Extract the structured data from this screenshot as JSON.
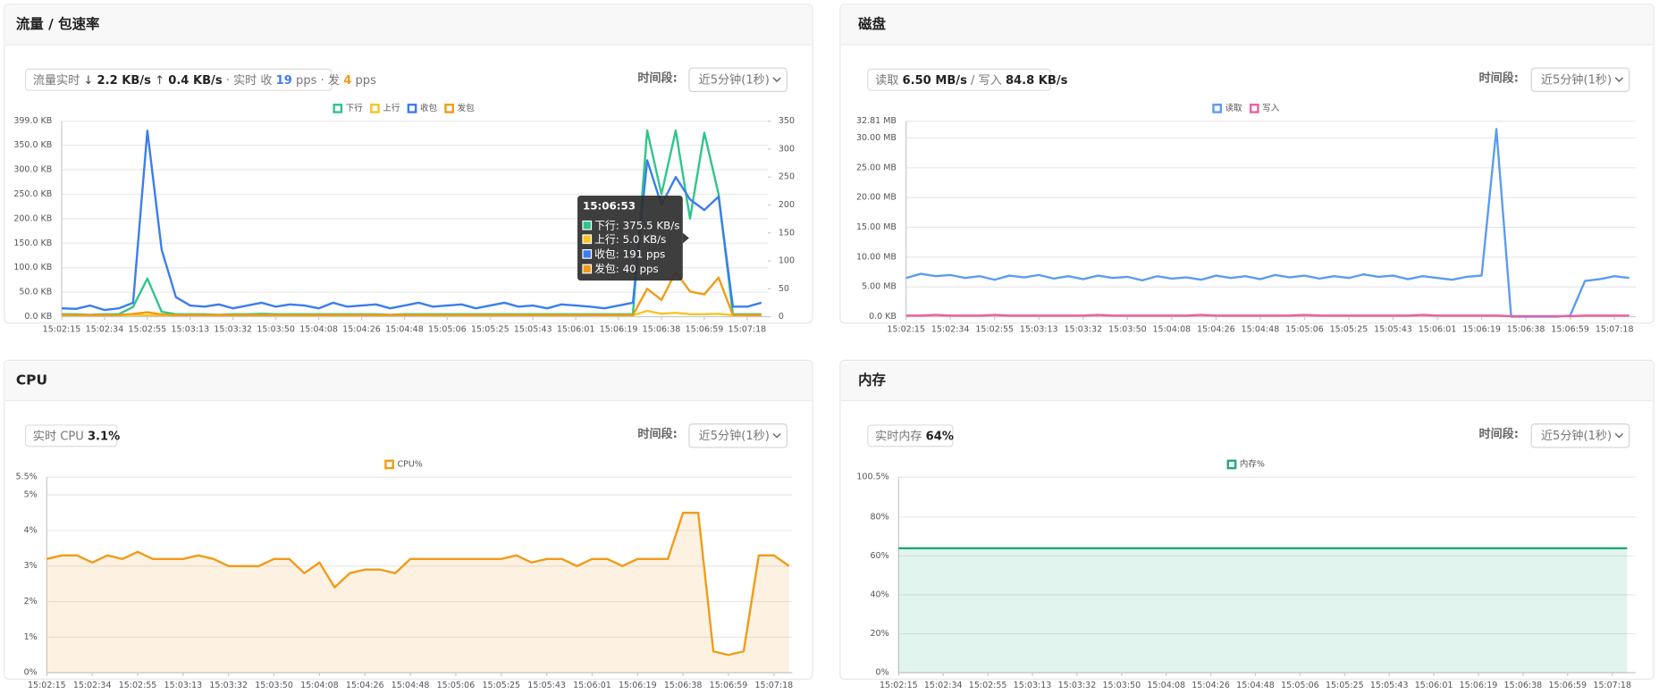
{
  "panels": [
    {
      "badge": [
        "流量实时",
        "↓",
        "2.2 KB/s",
        "↑",
        "0.4 KB/s",
        "· 实时 收",
        "19",
        "pps · 发",
        "4",
        "pps"
      ],
      "time_label": "时间段:",
      "time_select": "近5分钟(1秒)",
      "tooltip": {
        "title": "15:06:53",
        "items": [
          "下行: 375.5 KB/s",
          "上行: 5.0 KB/s",
          "收包: 191 pps",
          "发包: 40 pps"
        ]
      }
    },
    {
      "badge": [
        "读取",
        "6.50 MB/s",
        "/ 写入",
        "84.8 KB/s"
      ],
      "time_label": "时间段:",
      "time_select": "近5分钟(1秒)"
    },
    {
      "badge": [
        "实时 CPU",
        "3.1%"
      ],
      "time_label": "时间段:",
      "time_select": "近5分钟(1秒)"
    },
    {
      "badge": [
        "实时内存",
        "64%"
      ],
      "time_label": "时间段:",
      "time_select": "近5分钟(1秒)"
    }
  ],
  "chart_data": [
    {
      "type": "line",
      "title": "流量 / 包速率",
      "categories": [
        "15:02:15",
        null,
        null,
        "15:02:34",
        null,
        null,
        "15:02:55",
        null,
        null,
        "15:03:13",
        null,
        null,
        "15:03:32",
        null,
        null,
        "15:03:50",
        null,
        null,
        "15:04:08",
        null,
        null,
        "15:04:26",
        null,
        null,
        "15:04:48",
        null,
        null,
        "15:05:06",
        null,
        null,
        "15:05:25",
        null,
        null,
        "15:05:43",
        null,
        null,
        "15:06:01",
        null,
        null,
        "15:06:19",
        null,
        null,
        "15:06:38",
        null,
        null,
        "15:06:59",
        null,
        null,
        "15:07:18",
        null
      ],
      "series": [
        {
          "name": "下行",
          "color": "#2fc58a",
          "values": [
            5,
            5,
            4,
            5,
            5,
            20,
            78,
            10,
            5,
            5,
            5,
            4,
            5,
            5,
            6,
            5,
            5,
            5,
            5,
            5,
            5,
            5,
            5,
            4,
            5,
            5,
            5,
            5,
            5,
            5,
            5,
            5,
            5,
            5,
            5,
            5,
            5,
            5,
            5,
            5,
            5,
            380,
            250,
            380,
            200,
            375.5,
            250,
            5,
            5,
            5
          ]
        },
        {
          "name": "上行",
          "color": "#f7c623",
          "values": [
            3,
            3,
            3,
            3,
            3,
            4,
            3,
            3,
            3,
            3,
            3,
            3,
            3,
            3,
            3,
            3,
            3,
            3,
            3,
            3,
            3,
            3,
            3,
            3,
            3,
            3,
            3,
            3,
            3,
            3,
            3,
            3,
            3,
            3,
            3,
            3,
            3,
            3,
            3,
            3,
            3,
            12,
            6,
            8,
            5,
            5,
            6,
            3,
            3,
            3
          ]
        },
        {
          "name": "收包",
          "color": "#3b7ded",
          "axis": "y2",
          "values": [
            15,
            14,
            20,
            12,
            15,
            25,
            333,
            120,
            35,
            20,
            18,
            22,
            15,
            20,
            25,
            18,
            22,
            20,
            15,
            25,
            18,
            20,
            22,
            15,
            20,
            25,
            18,
            20,
            22,
            15,
            20,
            25,
            18,
            20,
            15,
            22,
            20,
            18,
            15,
            20,
            25,
            280,
            200,
            250,
            210,
            191,
            215,
            18,
            18,
            25
          ]
        },
        {
          "name": "发包",
          "color": "#f29b17",
          "axis": "y2",
          "values": [
            3,
            3,
            3,
            3,
            3,
            5,
            8,
            4,
            3,
            3,
            3,
            3,
            3,
            3,
            3,
            3,
            3,
            3,
            3,
            3,
            3,
            3,
            3,
            3,
            3,
            3,
            3,
            3,
            3,
            3,
            3,
            3,
            3,
            3,
            3,
            3,
            3,
            3,
            3,
            3,
            3,
            50,
            30,
            80,
            45,
            40,
            70,
            3,
            3,
            3
          ]
        }
      ],
      "ylim": [
        0,
        399
      ],
      "yticks": [
        {
          "value": 0,
          "label": "0.0 KB"
        },
        {
          "value": 50,
          "label": "50.0 KB"
        },
        {
          "value": 100,
          "label": "100.0 KB"
        },
        {
          "value": 150,
          "label": "150.0 KB"
        },
        {
          "value": 200,
          "label": "200.0 KB"
        },
        {
          "value": 250,
          "label": "250.0 KB"
        },
        {
          "value": 300,
          "label": "300.0 KB"
        },
        {
          "value": 350,
          "label": "350.0 KB"
        },
        {
          "value": 399,
          "label": "399.0 KB"
        }
      ],
      "y2lim": [
        0,
        350
      ],
      "y2ticks": [
        0,
        50,
        100,
        150,
        200,
        250,
        300,
        350
      ],
      "grid": true,
      "legend": "top"
    },
    {
      "type": "line",
      "title": "磁盘",
      "categories": [
        "15:02:15",
        null,
        null,
        "15:02:34",
        null,
        null,
        "15:02:55",
        null,
        null,
        "15:03:13",
        null,
        null,
        "15:03:32",
        null,
        null,
        "15:03:50",
        null,
        null,
        "15:04:08",
        null,
        null,
        "15:04:26",
        null,
        null,
        "15:04:48",
        null,
        null,
        "15:05:06",
        null,
        null,
        "15:05:25",
        null,
        null,
        "15:05:43",
        null,
        null,
        "15:06:01",
        null,
        null,
        "15:06:19",
        null,
        null,
        "15:06:38",
        null,
        null,
        "15:06:59",
        null,
        null,
        "15:07:18",
        null
      ],
      "series": [
        {
          "name": "读取",
          "color": "#5b9cf0",
          "values": [
            6.5,
            7.2,
            6.8,
            7.0,
            6.5,
            6.8,
            6.2,
            6.9,
            6.6,
            7.0,
            6.4,
            6.8,
            6.3,
            6.9,
            6.5,
            6.7,
            6.1,
            6.8,
            6.4,
            6.6,
            6.2,
            6.9,
            6.5,
            6.8,
            6.3,
            7.0,
            6.6,
            6.9,
            6.4,
            6.8,
            6.5,
            7.1,
            6.7,
            6.9,
            6.3,
            6.8,
            6.5,
            6.2,
            6.7,
            6.9,
            31.5,
            0,
            0,
            0,
            0,
            0.2,
            6.0,
            6.3,
            6.8,
            6.5
          ]
        },
        {
          "name": "写入",
          "color": "#ec5f9e",
          "values": [
            0.2,
            0.2,
            0.3,
            0.2,
            0.2,
            0.2,
            0.3,
            0.2,
            0.2,
            0.2,
            0.2,
            0.2,
            0.2,
            0.3,
            0.2,
            0.2,
            0.2,
            0.2,
            0.2,
            0.2,
            0.3,
            0.2,
            0.2,
            0.2,
            0.2,
            0.2,
            0.2,
            0.3,
            0.2,
            0.2,
            0.2,
            0.2,
            0.2,
            0.2,
            0.2,
            0.3,
            0.2,
            0.2,
            0.2,
            0.2,
            0.2,
            0.1,
            0.1,
            0.1,
            0.1,
            0.1,
            0.2,
            0.2,
            0.2,
            0.2
          ]
        }
      ],
      "ylim": [
        0,
        32.81
      ],
      "yticks": [
        {
          "value": 0,
          "label": "0.0 KB"
        },
        {
          "value": 5,
          "label": "5.00 MB"
        },
        {
          "value": 10,
          "label": "10.00 MB"
        },
        {
          "value": 15,
          "label": "15.00 MB"
        },
        {
          "value": 20,
          "label": "20.00 MB"
        },
        {
          "value": 25,
          "label": "25.00 MB"
        },
        {
          "value": 30,
          "label": "30.00 MB"
        },
        {
          "value": 32.81,
          "label": "32.81 MB"
        }
      ],
      "grid": true,
      "legend": "top"
    },
    {
      "type": "area",
      "title": "CPU",
      "categories": [
        "15:02:15",
        null,
        null,
        "15:02:34",
        null,
        null,
        "15:02:55",
        null,
        null,
        "15:03:13",
        null,
        null,
        "15:03:32",
        null,
        null,
        "15:03:50",
        null,
        null,
        "15:04:08",
        null,
        null,
        "15:04:26",
        null,
        null,
        "15:04:48",
        null,
        null,
        "15:05:06",
        null,
        null,
        "15:05:25",
        null,
        null,
        "15:05:43",
        null,
        null,
        "15:06:01",
        null,
        null,
        "15:06:19",
        null,
        null,
        "15:06:38",
        null,
        null,
        "15:06:59",
        null,
        null,
        "15:07:18",
        null
      ],
      "series": [
        {
          "name": "CPU%",
          "color": "#f29b17",
          "values": [
            3.2,
            3.3,
            3.3,
            3.1,
            3.3,
            3.2,
            3.4,
            3.2,
            3.2,
            3.2,
            3.3,
            3.2,
            3.0,
            3.0,
            3.0,
            3.2,
            3.2,
            2.8,
            3.1,
            2.4,
            2.8,
            2.9,
            2.9,
            2.8,
            3.2,
            3.2,
            3.2,
            3.2,
            3.2,
            3.2,
            3.2,
            3.3,
            3.1,
            3.2,
            3.2,
            3.0,
            3.2,
            3.2,
            3.0,
            3.2,
            3.2,
            3.2,
            4.5,
            4.5,
            0.6,
            0.5,
            0.6,
            3.3,
            3.3,
            3.0
          ]
        }
      ],
      "ylim": [
        0,
        5.5
      ],
      "yticks": [
        {
          "value": 0,
          "label": "0%"
        },
        {
          "value": 1,
          "label": "1%"
        },
        {
          "value": 2,
          "label": "2%"
        },
        {
          "value": 3,
          "label": "3%"
        },
        {
          "value": 4,
          "label": "4%"
        },
        {
          "value": 5,
          "label": "5%"
        },
        {
          "value": 5.5,
          "label": "5.5%"
        }
      ],
      "grid": true,
      "legend": "top"
    },
    {
      "type": "area",
      "title": "内存",
      "categories": [
        "15:02:15",
        null,
        null,
        "15:02:34",
        null,
        null,
        "15:02:55",
        null,
        null,
        "15:03:13",
        null,
        null,
        "15:03:32",
        null,
        null,
        "15:03:50",
        null,
        null,
        "15:04:08",
        null,
        null,
        "15:04:26",
        null,
        null,
        "15:04:48",
        null,
        null,
        "15:05:06",
        null,
        null,
        "15:05:25",
        null,
        null,
        "15:05:43",
        null,
        null,
        "15:06:01",
        null,
        null,
        "15:06:19",
        null,
        null,
        "15:06:38",
        null,
        null,
        "15:06:59",
        null,
        null,
        "15:07:18",
        null
      ],
      "series": [
        {
          "name": "内存%",
          "color": "#1fa878",
          "values": [
            64,
            64,
            64,
            64,
            64,
            64,
            64,
            64,
            64,
            64,
            64,
            64,
            64,
            64,
            64,
            64,
            64,
            64,
            64,
            64,
            64,
            64,
            64,
            64,
            64,
            64,
            64,
            64,
            64,
            64,
            64,
            64,
            64,
            64,
            64,
            64,
            64,
            64,
            64,
            64,
            64,
            64,
            64,
            64,
            64,
            64,
            64,
            64,
            64,
            64
          ]
        }
      ],
      "ylim": [
        0,
        100.5
      ],
      "yticks": [
        {
          "value": 0,
          "label": "0%"
        },
        {
          "value": 20,
          "label": "20%"
        },
        {
          "value": 40,
          "label": "40%"
        },
        {
          "value": 60,
          "label": "60%"
        },
        {
          "value": 80,
          "label": "80%"
        },
        {
          "value": 100.5,
          "label": "100.5%"
        }
      ],
      "grid": true,
      "legend": "top"
    }
  ]
}
